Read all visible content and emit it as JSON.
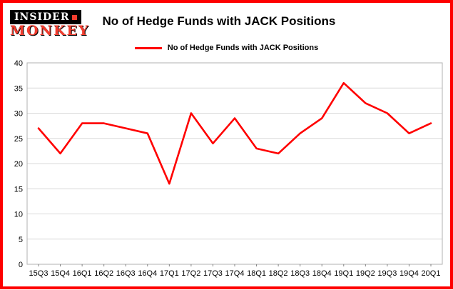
{
  "brand": {
    "line1": "INSIDER",
    "line2": "MONKEY"
  },
  "header": {
    "title": "No of Hedge Funds with JACK Positions"
  },
  "legend": {
    "label": "No of Hedge Funds with JACK Positions"
  },
  "colors": {
    "accent": "#ff0000",
    "page_border": "#fe0000",
    "grid": "#d9d9d9",
    "plot_border": "#b0b0b0",
    "axis": "#808080",
    "text": "#000000"
  },
  "chart_data": {
    "type": "line",
    "title": "No of Hedge Funds with JACK Positions",
    "categories": [
      "15Q3",
      "15Q4",
      "16Q1",
      "16Q2",
      "16Q3",
      "16Q4",
      "17Q1",
      "17Q2",
      "17Q3",
      "17Q4",
      "18Q1",
      "18Q2",
      "18Q3",
      "18Q4",
      "19Q1",
      "19Q2",
      "19Q3",
      "19Q4",
      "20Q1"
    ],
    "series": [
      {
        "name": "No of Hedge Funds with JACK Positions",
        "values": [
          27,
          22,
          28,
          28,
          27,
          26,
          16,
          30,
          24,
          29,
          23,
          22,
          26,
          29,
          36,
          32,
          30,
          26,
          28
        ]
      }
    ],
    "xlabel": "",
    "ylabel": "",
    "ylim": [
      0,
      40
    ],
    "ytick_step": 5,
    "grid": true,
    "legend_position": "top-center"
  }
}
